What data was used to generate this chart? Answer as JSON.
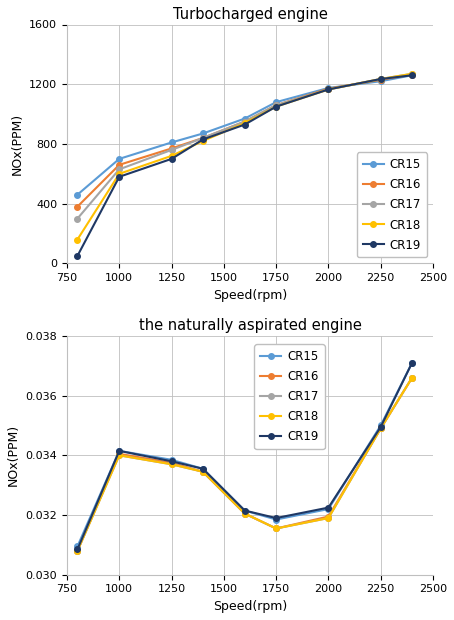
{
  "speed": [
    800,
    1000,
    1250,
    1400,
    1600,
    1750,
    2000,
    2250,
    2400
  ],
  "turbo": {
    "title": "Turbocharged engine",
    "ylabel": "NOx(PPM)",
    "xlabel": "Speed(rpm)",
    "ylim": [
      0,
      1600
    ],
    "yticks": [
      0,
      400,
      800,
      1200,
      1600
    ],
    "xlim": [
      750,
      2500
    ],
    "xticks": [
      750,
      1000,
      1250,
      1500,
      1750,
      2000,
      2250,
      2500
    ],
    "series": {
      "CR15": {
        "color": "#5B9BD5",
        "values": [
          460,
          700,
          810,
          870,
          970,
          1080,
          1175,
          1220,
          1260
        ]
      },
      "CR16": {
        "color": "#ED7D31",
        "values": [
          380,
          660,
          770,
          840,
          950,
          1060,
          1170,
          1230,
          1265
        ]
      },
      "CR17": {
        "color": "#A5A5A5",
        "values": [
          300,
          630,
          760,
          840,
          950,
          1060,
          1165,
          1235,
          1270
        ]
      },
      "CR18": {
        "color": "#FFC000",
        "values": [
          160,
          600,
          720,
          820,
          940,
          1050,
          1165,
          1235,
          1270
        ]
      },
      "CR19": {
        "color": "#1F3864",
        "values": [
          50,
          580,
          700,
          830,
          930,
          1050,
          1165,
          1235,
          1260
        ]
      }
    }
  },
  "natural": {
    "title": "the naturally aspirated engine",
    "ylabel": "NOx(PPM)",
    "xlabel": "Speed(rpm)",
    "ylim": [
      0.03,
      0.038
    ],
    "yticks": [
      0.03,
      0.032,
      0.034,
      0.036,
      0.038
    ],
    "xlim": [
      750,
      2500
    ],
    "xticks": [
      750,
      1000,
      1250,
      1500,
      1750,
      2000,
      2250,
      2500
    ],
    "series": {
      "CR15": {
        "color": "#5B9BD5",
        "values": [
          0.03095,
          0.03415,
          0.03385,
          0.03355,
          0.03215,
          0.03185,
          0.0322,
          0.035,
          0.0371
        ]
      },
      "CR16": {
        "color": "#ED7D31",
        "values": [
          0.0308,
          0.03405,
          0.03375,
          0.03345,
          0.03205,
          0.03155,
          0.03195,
          0.0349,
          0.0366
        ]
      },
      "CR17": {
        "color": "#A5A5A5",
        "values": [
          0.0308,
          0.034,
          0.0337,
          0.03345,
          0.03205,
          0.03155,
          0.0319,
          0.0349,
          0.0366
        ]
      },
      "CR18": {
        "color": "#FFC000",
        "values": [
          0.0308,
          0.034,
          0.0337,
          0.03345,
          0.03205,
          0.03155,
          0.0319,
          0.0349,
          0.0366
        ]
      },
      "CR19": {
        "color": "#1F3864",
        "values": [
          0.03085,
          0.03415,
          0.0338,
          0.03355,
          0.03215,
          0.0319,
          0.03225,
          0.03495,
          0.0371
        ]
      }
    }
  },
  "legend_order": [
    "CR15",
    "CR16",
    "CR17",
    "CR18",
    "CR19"
  ],
  "figsize": [
    4.54,
    6.2
  ],
  "dpi": 100
}
